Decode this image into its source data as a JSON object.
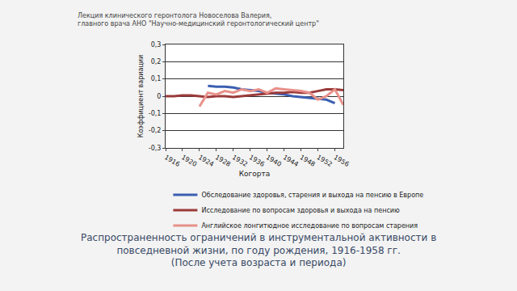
{
  "chart_data": {
    "type": "line",
    "title": [
      "Лекция клинического геронтолога Новоселова Валерия,",
      "главного врача АНО \"Научно-медицинский геронтологический центр\""
    ],
    "subtitle": [
      "Распространенность ограничений в инструментальной активности в",
      "повседневной жизни, по году рождения, 1916-1958 гг.",
      "(После учета возраста и периода)"
    ],
    "x_label": "Когорта",
    "y_label": "Коэффициент вариации",
    "x": [
      1916,
      1918,
      1920,
      1922,
      1924,
      1926,
      1928,
      1930,
      1932,
      1934,
      1936,
      1938,
      1940,
      1942,
      1944,
      1946,
      1948,
      1950,
      1952,
      1954,
      1956,
      1958
    ],
    "series": [
      {
        "name": "Обследование здоровья, старения и выхода на пенсию в Европе",
        "color": "#3a5fb0",
        "values": [
          null,
          null,
          null,
          null,
          null,
          0.06,
          0.055,
          0.055,
          0.05,
          0.04,
          0.035,
          0.03,
          0.02,
          0.015,
          0.01,
          0.0,
          -0.005,
          -0.01,
          -0.015,
          -0.02,
          -0.04,
          null
        ]
      },
      {
        "name": "Исследование по вопросам здоровья и выхода на пенсию",
        "color": "#9b3b3b",
        "values": [
          0.0,
          0.0,
          0.005,
          0.005,
          0.0,
          -0.005,
          0.0,
          0.0,
          -0.005,
          0.0,
          0.005,
          0.01,
          0.015,
          0.02,
          0.02,
          0.025,
          0.02,
          0.02,
          0.03,
          0.04,
          0.04,
          0.035
        ]
      },
      {
        "name": "Английское лонгитюдное исследование по вопросам старения",
        "color": "#e8918a",
        "values": [
          null,
          null,
          null,
          null,
          -0.06,
          0.02,
          0.01,
          0.03,
          0.02,
          0.04,
          0.03,
          0.04,
          0.02,
          0.045,
          0.04,
          0.035,
          0.03,
          0.02,
          -0.02,
          0.0,
          0.04,
          -0.05
        ]
      }
    ],
    "xlim": [
      1916,
      1958
    ],
    "xticks": [
      1916,
      1920,
      1924,
      1928,
      1932,
      1936,
      1940,
      1944,
      1948,
      1952,
      1956
    ],
    "ylim": [
      -0.3,
      0.3
    ],
    "yticks": [
      {
        "value": -0.3,
        "label": "-0,3"
      },
      {
        "value": -0.2,
        "label": "-0,2"
      },
      {
        "value": -0.1,
        "label": "-0,1"
      },
      0,
      {
        "value": 0.1,
        "label": "0,1"
      },
      {
        "value": 0.2,
        "label": "0,2"
      },
      {
        "value": 0.3,
        "label": "0,3"
      }
    ],
    "grid": true,
    "legend": "bottom",
    "line_style": "solid"
  }
}
